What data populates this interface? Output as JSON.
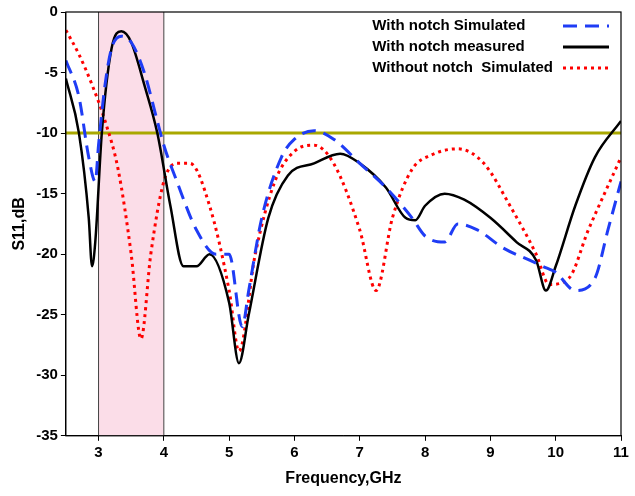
{
  "chart_data": {
    "type": "line",
    "x_label": "Frequency,GHz",
    "y_label": "S11,dB",
    "xlim": [
      2.5,
      11
    ],
    "xticks": [
      3,
      4,
      5,
      6,
      7,
      8,
      9,
      10,
      11
    ],
    "ylim": [
      -35,
      0
    ],
    "yticks": [
      -35,
      -30,
      -25,
      -20,
      -15,
      -10,
      -5,
      0
    ],
    "grid": false,
    "legend": "upper right",
    "shaded_band": {
      "x": [
        3,
        4
      ],
      "color": "#fbdde8"
    },
    "reference_line": {
      "y": -10,
      "color": "#a9a800"
    },
    "series": [
      {
        "name": "With notch Simulated",
        "color": "#1f3cf5",
        "line_style": "dashed",
        "x": [
          2.5,
          2.7,
          2.85,
          2.95,
          3.0,
          3.1,
          3.2,
          3.35,
          3.5,
          3.7,
          3.9,
          4.0,
          4.2,
          4.5,
          4.8,
          5.0,
          5.2,
          5.3,
          5.5,
          5.8,
          6.0,
          6.3,
          6.6,
          7.0,
          7.4,
          7.8,
          8.0,
          8.3,
          8.5,
          8.8,
          9.2,
          9.6,
          9.8,
          10.0,
          10.3,
          10.6,
          10.8,
          11.0
        ],
        "values": [
          -4,
          -7,
          -12,
          -14,
          -11,
          -6,
          -3,
          -2,
          -2.5,
          -5,
          -9,
          -11,
          -14,
          -18,
          -20,
          -20,
          -26,
          -23,
          -17,
          -12,
          -10.5,
          -9.8,
          -10.5,
          -12.5,
          -14.5,
          -17,
          -18.5,
          -19,
          -17.5,
          -18,
          -19.5,
          -20.5,
          -21,
          -21.5,
          -23,
          -22,
          -18,
          -14
        ]
      },
      {
        "name": "With notch measured",
        "color": "#000000",
        "line_style": "solid",
        "x": [
          2.5,
          2.7,
          2.85,
          2.9,
          2.95,
          3.05,
          3.2,
          3.35,
          3.5,
          3.7,
          3.9,
          4.1,
          4.3,
          4.5,
          4.7,
          5.0,
          5.15,
          5.3,
          5.6,
          5.9,
          6.3,
          6.7,
          7.0,
          7.4,
          7.7,
          7.85,
          8.0,
          8.3,
          8.6,
          9.0,
          9.4,
          9.7,
          9.85,
          10.0,
          10.3,
          10.6,
          11.0
        ],
        "values": [
          -5.5,
          -10,
          -17,
          -21,
          -19,
          -10,
          -3,
          -1.6,
          -2.5,
          -6,
          -10,
          -16,
          -21,
          -21,
          -20,
          -24,
          -29,
          -25,
          -17,
          -13.5,
          -12.5,
          -11.7,
          -12.5,
          -14.5,
          -17,
          -17.2,
          -16,
          -15,
          -15.5,
          -17,
          -19,
          -20.5,
          -23,
          -21,
          -16,
          -12,
          -9
        ]
      },
      {
        "name": "Without notch  Simulated",
        "color": "#ff0000",
        "line_style": "dotted",
        "x": [
          2.5,
          2.7,
          2.9,
          3.1,
          3.3,
          3.5,
          3.65,
          3.8,
          4.0,
          4.2,
          4.4,
          4.7,
          5.0,
          5.15,
          5.4,
          5.7,
          6.0,
          6.3,
          6.6,
          7.0,
          7.25,
          7.5,
          7.8,
          8.1,
          8.5,
          8.9,
          9.3,
          9.7,
          9.9,
          10.2,
          10.5,
          11.0
        ],
        "values": [
          -1.5,
          -3.5,
          -6,
          -9,
          -13,
          -20,
          -27,
          -20,
          -14,
          -12.5,
          -12.5,
          -16,
          -23,
          -28,
          -20,
          -14,
          -11.5,
          -11,
          -12.5,
          -18,
          -23,
          -17,
          -13,
          -11.8,
          -11.3,
          -12.5,
          -16,
          -20,
          -22.5,
          -22,
          -18,
          -12
        ]
      }
    ]
  }
}
